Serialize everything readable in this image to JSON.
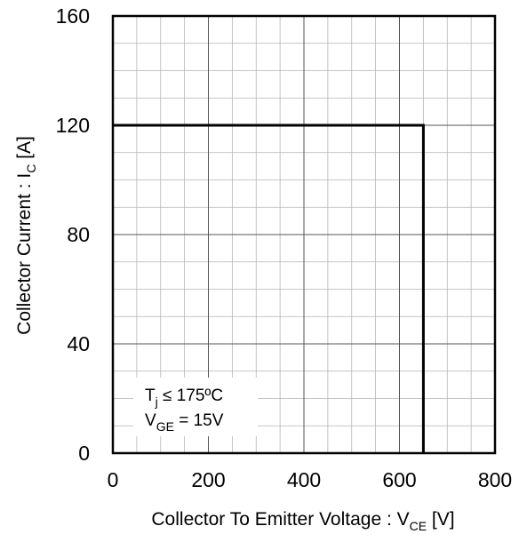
{
  "chart_data": {
    "type": "line",
    "title": "",
    "xlabel": {
      "main": "Collector To Emitter Voltage : V",
      "sub": "CE",
      "unit": " [V]"
    },
    "ylabel": {
      "main": "Collector Current : I",
      "sub": "C",
      "unit": " [A]"
    },
    "xlim": [
      0,
      800
    ],
    "ylim": [
      0,
      160
    ],
    "x_ticks": [
      "0",
      "200",
      "400",
      "600",
      "800"
    ],
    "y_ticks": [
      "0",
      "40",
      "80",
      "120",
      "160"
    ],
    "grid": "on (major and minor)",
    "series": [
      {
        "points": [
          [
            0,
            120
          ],
          [
            650,
            120
          ],
          [
            650,
            0
          ]
        ]
      }
    ],
    "annotations": [
      {
        "main": "T",
        "sub": "j",
        "rest": " ≤ 175ºC"
      },
      {
        "main": "V",
        "sub": "GE",
        "rest": " = 15V"
      }
    ]
  }
}
